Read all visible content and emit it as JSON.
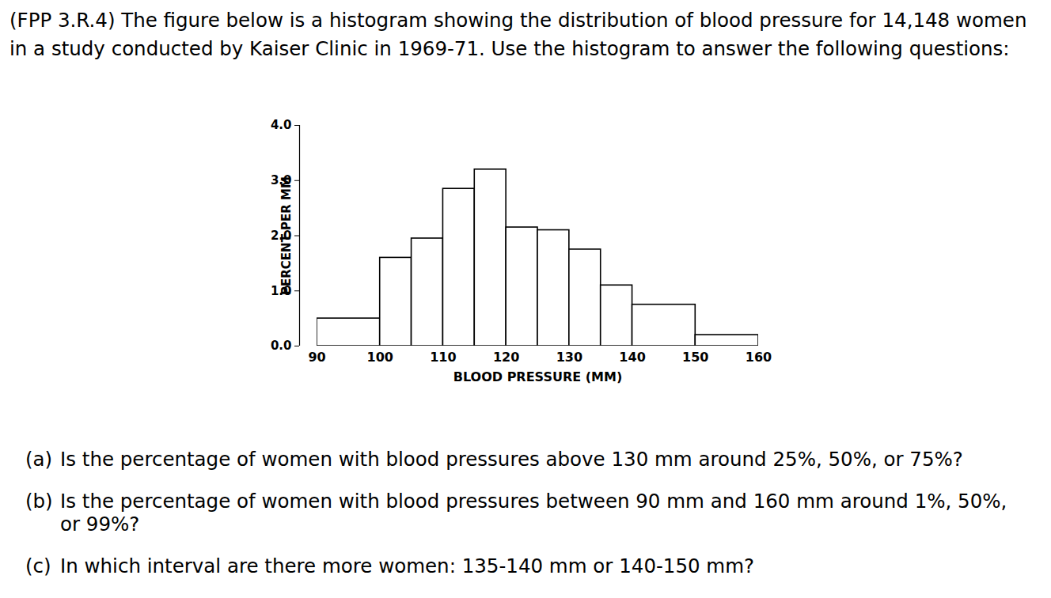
{
  "intro": "(FPP 3.R.4) The figure below is a histogram showing the distribution of blood pressure for 14,148 women in a study conducted by Kaiser Clinic in 1969-71. Use the histogram to answer the following questions:",
  "questions": [
    {
      "label": "(a)",
      "text": "Is the percentage of women with blood pressures above 130 mm around 25%, 50%, or 75%?"
    },
    {
      "label": "(b)",
      "text": "Is the percentage of women with blood pressures between 90 mm and 160 mm around 1%, 50%, or 99%?"
    },
    {
      "label": "(c)",
      "text": "In which interval are there more women: 135-140 mm or 140-150 mm?"
    }
  ],
  "chart_data": {
    "type": "histogram",
    "x_label": "BLOOD PRESSURE (MM)",
    "y_label": "PERCENT PER MM",
    "bins": [
      90,
      100,
      105,
      110,
      115,
      120,
      125,
      130,
      135,
      140,
      150,
      160
    ],
    "values": [
      0.5,
      1.6,
      1.95,
      2.85,
      3.2,
      2.15,
      2.1,
      1.75,
      1.1,
      0.75,
      0.2
    ],
    "color": "#ffffff",
    "xlim": [
      90,
      160
    ],
    "xticks": [
      90,
      100,
      110,
      120,
      130,
      140,
      150,
      160
    ],
    "ylim": [
      0,
      4
    ],
    "yticks": [
      0,
      1,
      2,
      3,
      4
    ],
    "grid": false
  }
}
